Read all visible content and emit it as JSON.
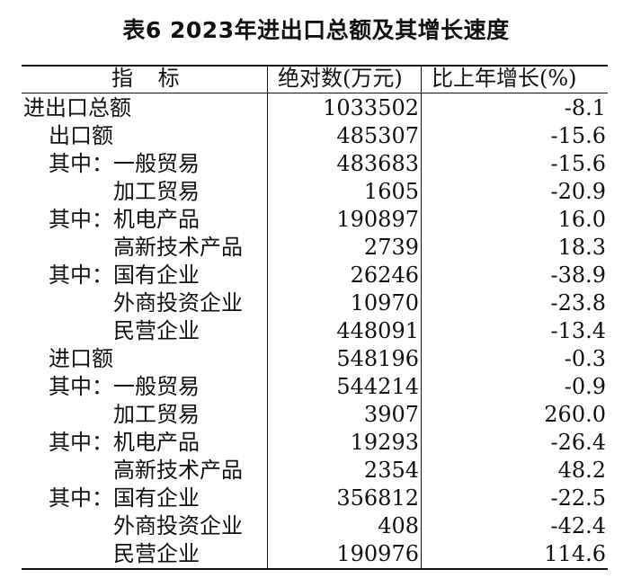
{
  "title": "表6  2023年进出口总额及其增长速度",
  "headers": {
    "name": "指 标",
    "absolute": "绝对数(万元)",
    "growth": "比上年增长(%)"
  },
  "rows": [
    {
      "name": "进出口总额",
      "indent": 0,
      "value": "1033502",
      "growth": "-8.1"
    },
    {
      "name": "出口额",
      "indent": 1,
      "value": "485307",
      "growth": "-15.6"
    },
    {
      "name": "其中：一般贸易",
      "indent": 1,
      "value": "483683",
      "growth": "-15.6"
    },
    {
      "name": "加工贸易",
      "indent": 2,
      "value": "1605",
      "growth": "-20.9"
    },
    {
      "name": "其中：机电产品",
      "indent": 1,
      "value": "190897",
      "growth": "16.0"
    },
    {
      "name": "高新技术产品",
      "indent": 2,
      "value": "2739",
      "growth": "18.3"
    },
    {
      "name": "其中：国有企业",
      "indent": 1,
      "value": "26246",
      "growth": "-38.9"
    },
    {
      "name": "外商投资企业",
      "indent": 2,
      "value": "10970",
      "growth": "-23.8"
    },
    {
      "name": "民营企业",
      "indent": 2,
      "value": "448091",
      "growth": "-13.4"
    },
    {
      "name": "进口额",
      "indent": 1,
      "value": "548196",
      "growth": "-0.3"
    },
    {
      "name": "其中：一般贸易",
      "indent": 1,
      "value": "544214",
      "growth": "-0.9"
    },
    {
      "name": "加工贸易",
      "indent": 2,
      "value": "3907",
      "growth": "260.0"
    },
    {
      "name": "其中：机电产品",
      "indent": 1,
      "value": "19293",
      "growth": "-26.4"
    },
    {
      "name": "高新技术产品",
      "indent": 2,
      "value": "2354",
      "growth": "48.2"
    },
    {
      "name": "其中：国有企业",
      "indent": 1,
      "value": "356812",
      "growth": "-22.5"
    },
    {
      "name": "外商投资企业",
      "indent": 2,
      "value": "408",
      "growth": "-42.4"
    },
    {
      "name": "民营企业",
      "indent": 2,
      "value": "190976",
      "growth": "114.6"
    }
  ]
}
